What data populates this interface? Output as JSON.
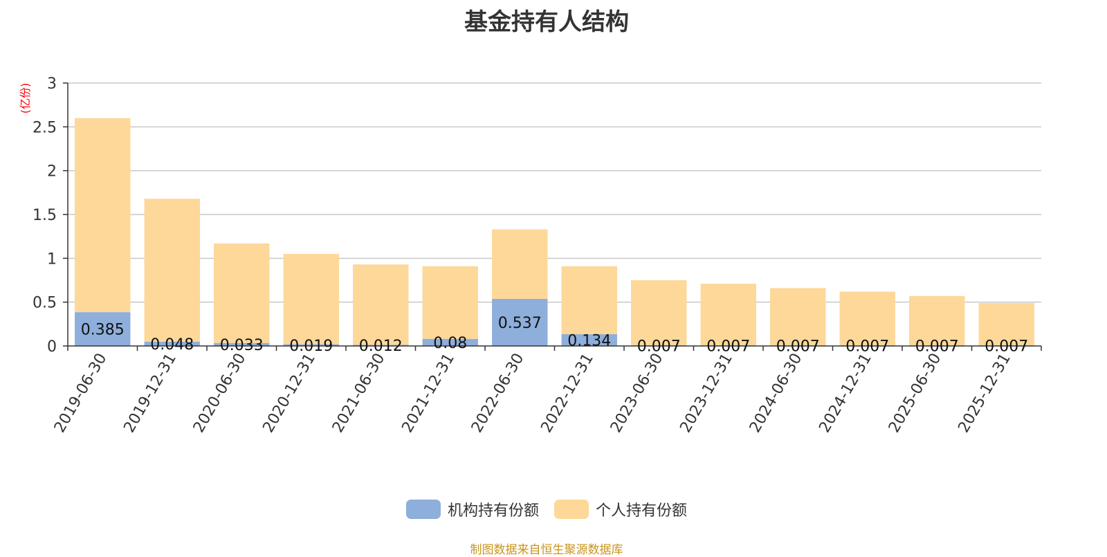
{
  "title": "基金持有人结构",
  "footer_note": "制图数据来自恒生聚源数据库",
  "chart_data": {
    "type": "bar",
    "stacked": true,
    "title": "基金持有人结构",
    "ylabel": "(亿份)",
    "xlabel": "",
    "ylim": [
      0,
      3
    ],
    "yticks": [
      "0",
      "0.5",
      "1",
      "1.5",
      "2",
      "2.5",
      "3"
    ],
    "grid": true,
    "legend_position": "bottom",
    "categories": [
      "2019-06-30",
      "2019-12-31",
      "2020-06-30",
      "2020-12-31",
      "2021-06-30",
      "2021-12-31",
      "2022-06-30",
      "2022-12-31",
      "2023-06-30",
      "2023-12-31",
      "2024-06-30",
      "2024-12-31",
      "2025-06-30",
      "2025-12-31"
    ],
    "series": [
      {
        "name": "机构持有份额",
        "color": "#8eaedb",
        "values": [
          0.385,
          0.048,
          0.033,
          0.019,
          0.012,
          0.08,
          0.537,
          0.134,
          0.007,
          0.007,
          0.007,
          0.007,
          0.007,
          0.007
        ],
        "labels": [
          "0.385",
          "0.048",
          "0.033",
          "0.019",
          "0.012",
          "0.08",
          "0.537",
          "0.134",
          "0.007",
          "0.007",
          "0.007",
          "0.007",
          "0.007",
          "0.007"
        ]
      },
      {
        "name": "个人持有份额",
        "color": "#fdd899",
        "values": [
          2.215,
          1.632,
          1.137,
          1.031,
          0.918,
          0.83,
          0.793,
          0.776,
          0.743,
          0.703,
          0.653,
          0.613,
          0.563,
          0.483
        ]
      }
    ]
  }
}
